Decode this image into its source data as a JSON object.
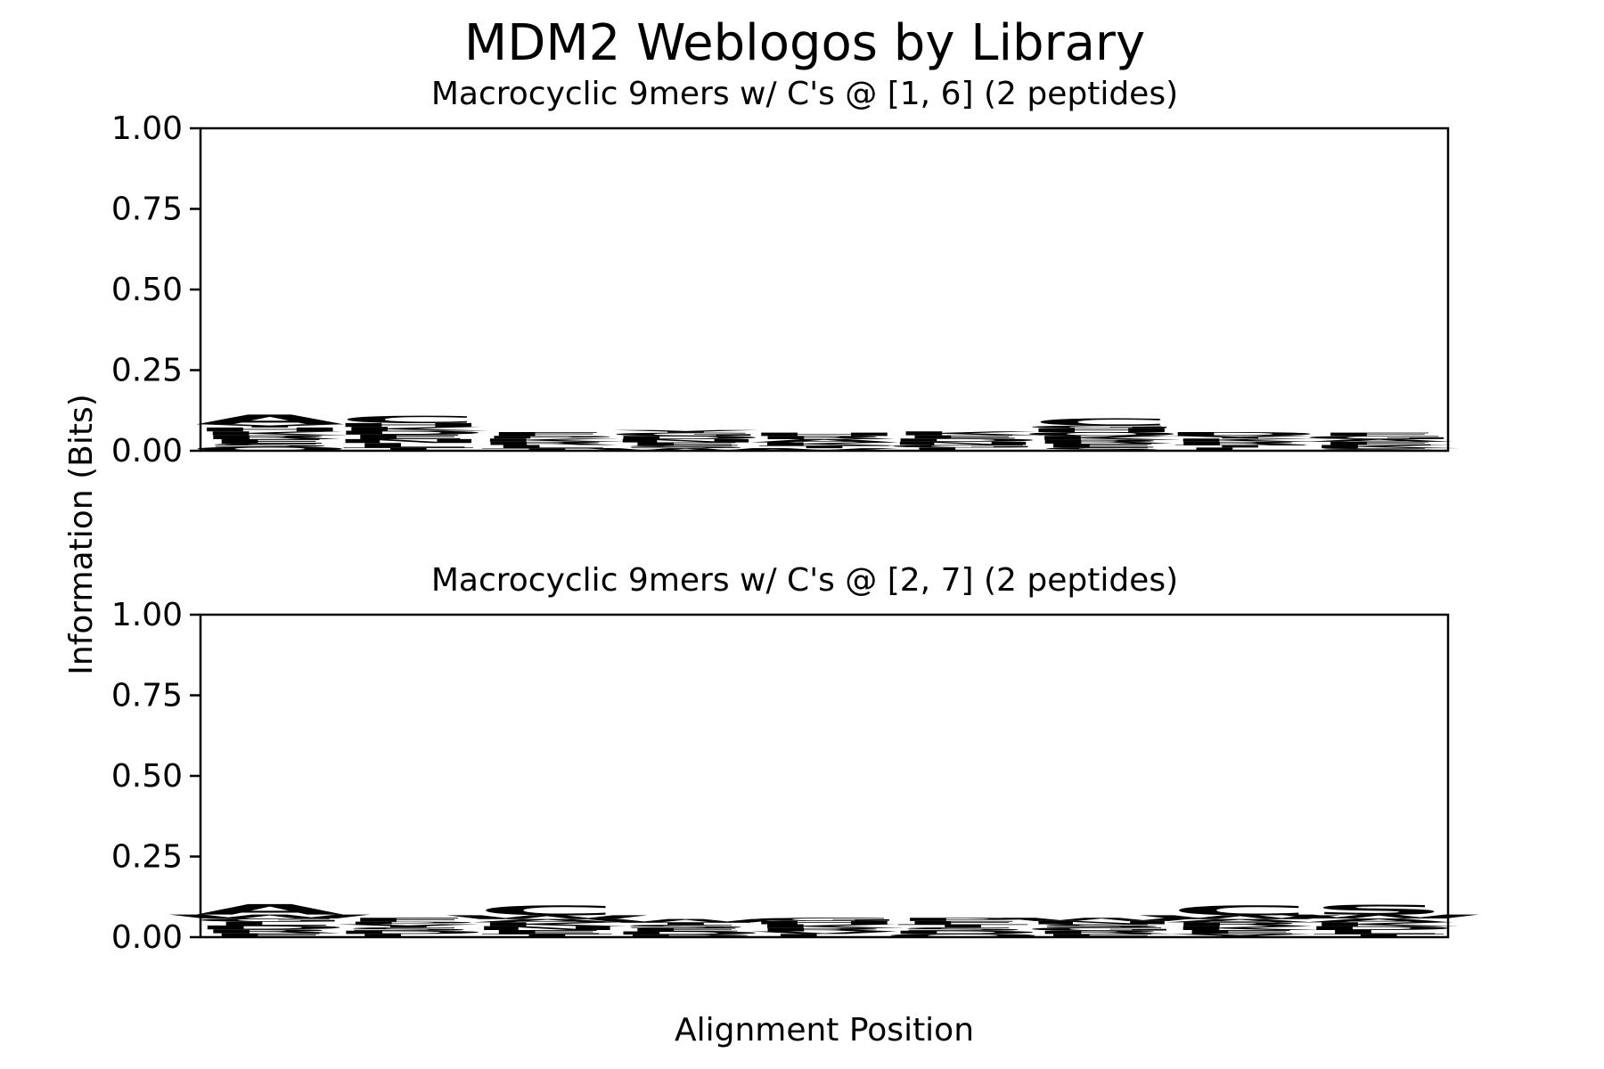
{
  "figure": {
    "suptitle": "MDM2 Weblogos by Library",
    "ylabel": "Information (Bits)",
    "xlabel": "Alignment Position"
  },
  "colors": {
    "green": "#008000",
    "blue": "#0000ff",
    "black": "#000000"
  },
  "chart_data": [
    {
      "type": "sequence-logo",
      "title": "Macrocyclic 9mers w/ C's @ [1, 6] (2 peptides)",
      "ylabel": "Information (Bits)",
      "xlabel": "Alignment Position",
      "ylim": [
        0,
        1.0
      ],
      "yticks": [
        "0.00",
        "0.25",
        "0.50",
        "0.75",
        "1.00"
      ],
      "positions": [
        1,
        2,
        3,
        4,
        5,
        6,
        7,
        8,
        9
      ],
      "stacks": [
        [
          {
            "letter": "Q",
            "bits": 0.012,
            "color": "black"
          },
          {
            "letter": "S",
            "bits": 0.01,
            "color": "green"
          },
          {
            "letter": "E",
            "bits": 0.014,
            "color": "black"
          },
          {
            "letter": "R",
            "bits": 0.012,
            "color": "blue"
          },
          {
            "letter": "K",
            "bits": 0.012,
            "color": "blue"
          },
          {
            "letter": "H",
            "bits": 0.012,
            "color": "blue"
          },
          {
            "letter": "Y",
            "bits": 0.01,
            "color": "green"
          },
          {
            "letter": "A",
            "bits": 0.03,
            "color": "green"
          }
        ],
        [
          {
            "letter": "T",
            "bits": 0.01,
            "color": "green"
          },
          {
            "letter": "L",
            "bits": 0.014,
            "color": "black"
          },
          {
            "letter": "N",
            "bits": 0.012,
            "color": "blue"
          },
          {
            "letter": "E",
            "bits": 0.014,
            "color": "black"
          },
          {
            "letter": "D",
            "bits": 0.012,
            "color": "blue"
          },
          {
            "letter": "K",
            "bits": 0.012,
            "color": "blue"
          },
          {
            "letter": "H",
            "bits": 0.012,
            "color": "blue"
          },
          {
            "letter": "C",
            "bits": 0.022,
            "color": "black"
          }
        ],
        [
          {
            "letter": "T",
            "bits": 0.008,
            "color": "green"
          },
          {
            "letter": "L",
            "bits": 0.01,
            "color": "black"
          },
          {
            "letter": "R",
            "bits": 0.01,
            "color": "blue"
          },
          {
            "letter": "K",
            "bits": 0.01,
            "color": "blue"
          },
          {
            "letter": "P",
            "bits": 0.008,
            "color": "black"
          },
          {
            "letter": "F",
            "bits": 0.012,
            "color": "black"
          }
        ],
        [
          {
            "letter": "W",
            "bits": 0.008,
            "color": "black"
          },
          {
            "letter": "S",
            "bits": 0.008,
            "color": "green"
          },
          {
            "letter": "E",
            "bits": 0.01,
            "color": "blue"
          },
          {
            "letter": "N",
            "bits": 0.01,
            "color": "blue"
          },
          {
            "letter": "D",
            "bits": 0.01,
            "color": "blue"
          },
          {
            "letter": "G",
            "bits": 0.01,
            "color": "green"
          },
          {
            "letter": "Y",
            "bits": 0.008,
            "color": "green"
          }
        ],
        [
          {
            "letter": "V",
            "bits": 0.008,
            "color": "black"
          },
          {
            "letter": "T",
            "bits": 0.008,
            "color": "green"
          },
          {
            "letter": "K",
            "bits": 0.01,
            "color": "blue"
          },
          {
            "letter": "A",
            "bits": 0.01,
            "color": "green"
          },
          {
            "letter": "R",
            "bits": 0.01,
            "color": "blue"
          },
          {
            "letter": "H",
            "bits": 0.01,
            "color": "blue"
          }
        ],
        [
          {
            "letter": "L",
            "bits": 0.01,
            "color": "black"
          },
          {
            "letter": "G",
            "bits": 0.008,
            "color": "green"
          },
          {
            "letter": "N",
            "bits": 0.01,
            "color": "blue"
          },
          {
            "letter": "D",
            "bits": 0.01,
            "color": "blue"
          },
          {
            "letter": "E",
            "bits": 0.01,
            "color": "black"
          },
          {
            "letter": "K",
            "bits": 0.012,
            "color": "blue"
          }
        ],
        [
          {
            "letter": "S",
            "bits": 0.01,
            "color": "green"
          },
          {
            "letter": "E",
            "bits": 0.012,
            "color": "black"
          },
          {
            "letter": "R",
            "bits": 0.012,
            "color": "blue"
          },
          {
            "letter": "K",
            "bits": 0.012,
            "color": "blue"
          },
          {
            "letter": "Q",
            "bits": 0.012,
            "color": "black"
          },
          {
            "letter": "H",
            "bits": 0.012,
            "color": "blue"
          },
          {
            "letter": "G",
            "bits": 0.008,
            "color": "green"
          },
          {
            "letter": "C",
            "bits": 0.022,
            "color": "black"
          }
        ],
        [
          {
            "letter": "L",
            "bits": 0.01,
            "color": "black"
          },
          {
            "letter": "T",
            "bits": 0.008,
            "color": "green"
          },
          {
            "letter": "R",
            "bits": 0.01,
            "color": "blue"
          },
          {
            "letter": "K",
            "bits": 0.01,
            "color": "blue"
          },
          {
            "letter": "Y",
            "bits": 0.008,
            "color": "green"
          },
          {
            "letter": "D",
            "bits": 0.012,
            "color": "blue"
          }
        ],
        [
          {
            "letter": "S",
            "bits": 0.008,
            "color": "green"
          },
          {
            "letter": "K",
            "bits": 0.01,
            "color": "blue"
          },
          {
            "letter": "E",
            "bits": 0.01,
            "color": "blue"
          },
          {
            "letter": "A",
            "bits": 0.008,
            "color": "green"
          },
          {
            "letter": "G",
            "bits": 0.01,
            "color": "green"
          },
          {
            "letter": "F",
            "bits": 0.01,
            "color": "black"
          }
        ]
      ]
    },
    {
      "type": "sequence-logo",
      "title": "Macrocyclic 9mers w/ C's @ [2, 7] (2 peptides)",
      "ylabel": "Information (Bits)",
      "xlabel": "Alignment Position",
      "ylim": [
        0,
        1.0
      ],
      "yticks": [
        "0.00",
        "0.25",
        "0.50",
        "0.75",
        "1.00"
      ],
      "positions": [
        1,
        2,
        3,
        4,
        5,
        6,
        7,
        8,
        9
      ],
      "stacks": [
        [
          {
            "letter": "E",
            "bits": 0.012,
            "color": "black"
          },
          {
            "letter": "R",
            "bits": 0.012,
            "color": "blue"
          },
          {
            "letter": "D",
            "bits": 0.012,
            "color": "blue"
          },
          {
            "letter": "L",
            "bits": 0.012,
            "color": "black"
          },
          {
            "letter": "G",
            "bits": 0.01,
            "color": "green"
          },
          {
            "letter": "W",
            "bits": 0.012,
            "color": "black"
          },
          {
            "letter": "A",
            "bits": 0.032,
            "color": "green"
          }
        ],
        [
          {
            "letter": "L",
            "bits": 0.01,
            "color": "black"
          },
          {
            "letter": "D",
            "bits": 0.01,
            "color": "blue"
          },
          {
            "letter": "S",
            "bits": 0.01,
            "color": "green"
          },
          {
            "letter": "Y",
            "bits": 0.01,
            "color": "green"
          },
          {
            "letter": "P",
            "bits": 0.008,
            "color": "black"
          },
          {
            "letter": "F",
            "bits": 0.012,
            "color": "black"
          }
        ],
        [
          {
            "letter": "T",
            "bits": 0.01,
            "color": "green"
          },
          {
            "letter": "E",
            "bits": 0.012,
            "color": "black"
          },
          {
            "letter": "N",
            "bits": 0.012,
            "color": "blue"
          },
          {
            "letter": "K",
            "bits": 0.012,
            "color": "blue"
          },
          {
            "letter": "A",
            "bits": 0.01,
            "color": "green"
          },
          {
            "letter": "W",
            "bits": 0.012,
            "color": "black"
          },
          {
            "letter": "C",
            "bits": 0.03,
            "color": "black"
          }
        ],
        [
          {
            "letter": "P",
            "bits": 0.008,
            "color": "black"
          },
          {
            "letter": "D",
            "bits": 0.01,
            "color": "blue"
          },
          {
            "letter": "E",
            "bits": 0.01,
            "color": "blue"
          },
          {
            "letter": "S",
            "bits": 0.01,
            "color": "green"
          },
          {
            "letter": "T",
            "bits": 0.008,
            "color": "green"
          },
          {
            "letter": "W",
            "bits": 0.01,
            "color": "black"
          }
        ],
        [
          {
            "letter": "L",
            "bits": 0.01,
            "color": "black"
          },
          {
            "letter": "V",
            "bits": 0.008,
            "color": "black"
          },
          {
            "letter": "R",
            "bits": 0.01,
            "color": "blue"
          },
          {
            "letter": "K",
            "bits": 0.012,
            "color": "blue"
          },
          {
            "letter": "H",
            "bits": 0.01,
            "color": "blue"
          },
          {
            "letter": "G",
            "bits": 0.01,
            "color": "green"
          }
        ],
        [
          {
            "letter": "Q",
            "bits": 0.01,
            "color": "black"
          },
          {
            "letter": "D",
            "bits": 0.01,
            "color": "blue"
          },
          {
            "letter": "S",
            "bits": 0.01,
            "color": "green"
          },
          {
            "letter": "T",
            "bits": 0.01,
            "color": "black"
          },
          {
            "letter": "F",
            "bits": 0.01,
            "color": "black"
          },
          {
            "letter": "P",
            "bits": 0.01,
            "color": "black"
          }
        ],
        [
          {
            "letter": "E",
            "bits": 0.01,
            "color": "black"
          },
          {
            "letter": "R",
            "bits": 0.01,
            "color": "blue"
          },
          {
            "letter": "G",
            "bits": 0.01,
            "color": "green"
          },
          {
            "letter": "S",
            "bits": 0.01,
            "color": "green"
          },
          {
            "letter": "N",
            "bits": 0.01,
            "color": "blue"
          },
          {
            "letter": "W",
            "bits": 0.01,
            "color": "black"
          }
        ],
        [
          {
            "letter": "Y",
            "bits": 0.01,
            "color": "green"
          },
          {
            "letter": "E",
            "bits": 0.012,
            "color": "black"
          },
          {
            "letter": "K",
            "bits": 0.012,
            "color": "blue"
          },
          {
            "letter": "R",
            "bits": 0.012,
            "color": "blue"
          },
          {
            "letter": "A",
            "bits": 0.01,
            "color": "green"
          },
          {
            "letter": "W",
            "bits": 0.012,
            "color": "black"
          },
          {
            "letter": "C",
            "bits": 0.03,
            "color": "black"
          }
        ],
        [
          {
            "letter": "T",
            "bits": 0.01,
            "color": "green"
          },
          {
            "letter": "L",
            "bits": 0.012,
            "color": "black"
          },
          {
            "letter": "D",
            "bits": 0.012,
            "color": "blue"
          },
          {
            "letter": "K",
            "bits": 0.012,
            "color": "blue"
          },
          {
            "letter": "A",
            "bits": 0.012,
            "color": "green"
          },
          {
            "letter": "W",
            "bits": 0.012,
            "color": "black"
          },
          {
            "letter": "S",
            "bits": 0.03,
            "color": "green"
          }
        ]
      ]
    }
  ]
}
